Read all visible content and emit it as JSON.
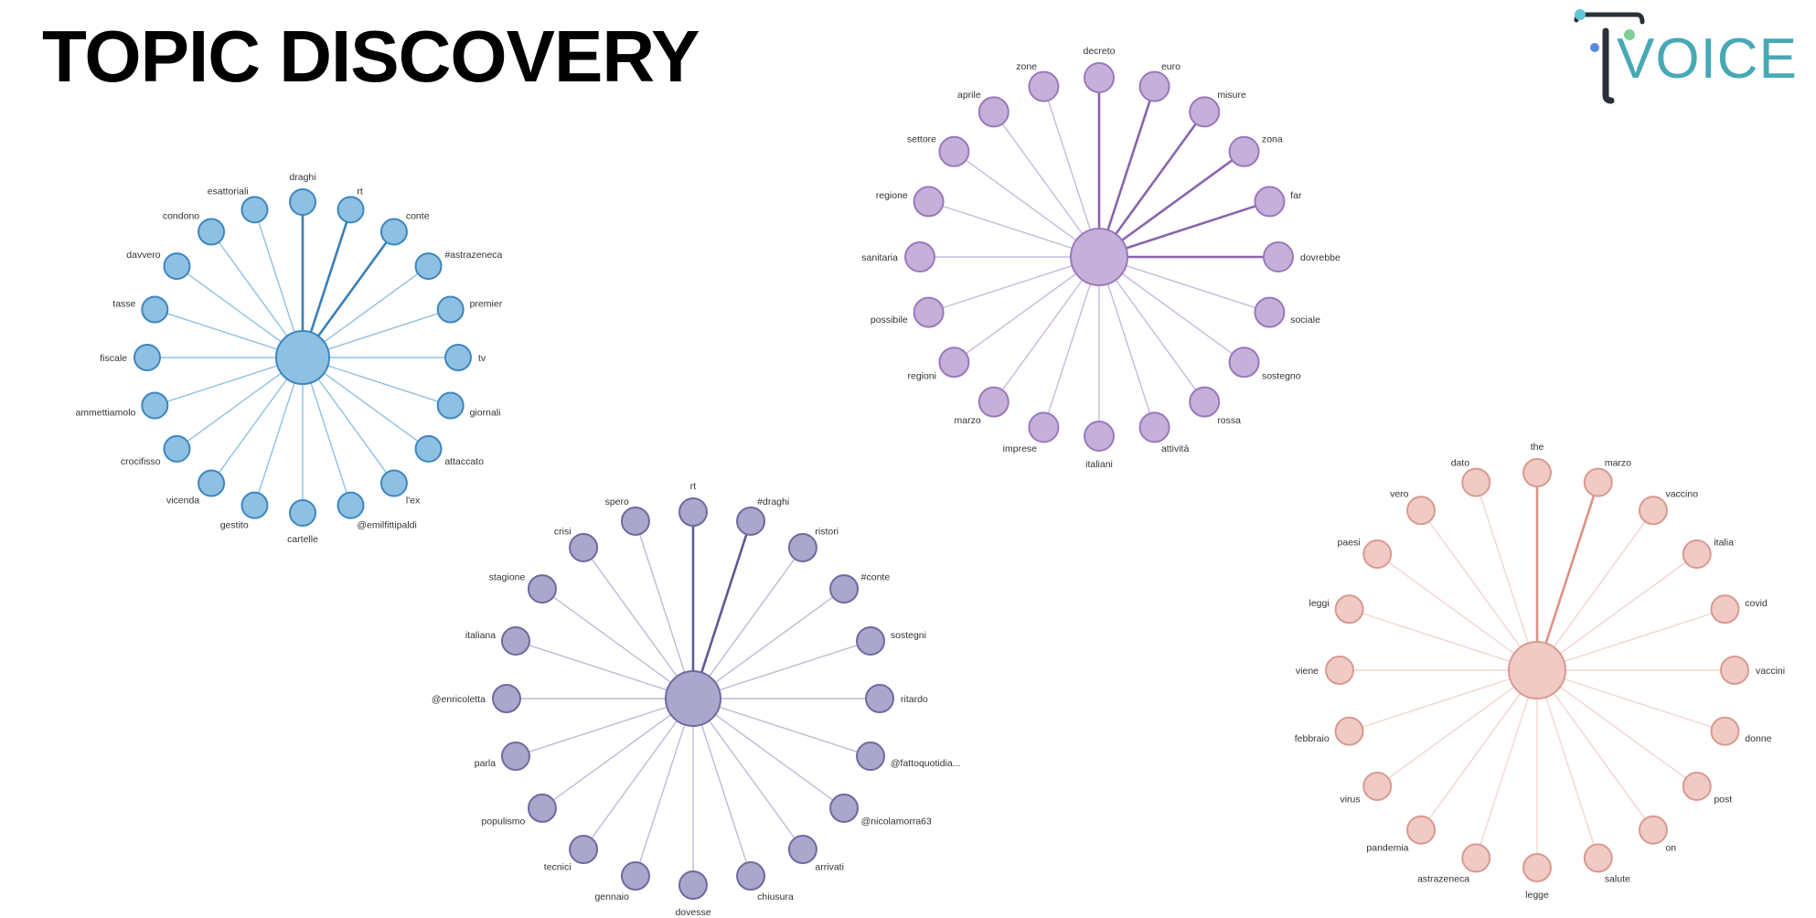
{
  "title": "TOPIC DISCOVERY",
  "logo": {
    "text": "VOICE",
    "icon": "voice-logo-icon",
    "colors": {
      "dark": "#2b2f3a",
      "teal": "#48a8b6",
      "cyan": "#5ec7d6",
      "green": "#7fcf9a",
      "blue": "#5b8ad8"
    }
  },
  "topics": [
    {
      "id": "topic-blue",
      "color": "#8ec0e2",
      "stroke": "#3d86bf",
      "edge": "#8ec0e2",
      "edge_strong": "#3a7fb7",
      "nodes": [
        {
          "label": "draghi",
          "strong": true
        },
        {
          "label": "rt",
          "strong": true
        },
        {
          "label": "conte",
          "strong": true
        },
        {
          "label": "#astrazeneca"
        },
        {
          "label": "premier"
        },
        {
          "label": "tv"
        },
        {
          "label": "giornali"
        },
        {
          "label": "attaccato"
        },
        {
          "label": "l'ex"
        },
        {
          "label": "@emilfittipaldi"
        },
        {
          "label": "cartelle"
        },
        {
          "label": "gestito"
        },
        {
          "label": "vicenda"
        },
        {
          "label": "crocifisso"
        },
        {
          "label": "ammettiamolo"
        },
        {
          "label": "fiscale"
        },
        {
          "label": "tasse"
        },
        {
          "label": "davvero"
        },
        {
          "label": "condono"
        },
        {
          "label": "esattoriali"
        }
      ]
    },
    {
      "id": "topic-lilac",
      "color": "#c6b0da",
      "stroke": "#9a78bd",
      "edge": "#c9b8dc",
      "edge_strong": "#8a64ad",
      "nodes": [
        {
          "label": "decreto",
          "strong": true
        },
        {
          "label": "euro",
          "strong": true
        },
        {
          "label": "misure",
          "strong": true
        },
        {
          "label": "zona",
          "strong": true
        },
        {
          "label": "far",
          "strong": true
        },
        {
          "label": "dovrebbe",
          "strong": true
        },
        {
          "label": "sociale"
        },
        {
          "label": "sostegno"
        },
        {
          "label": "rossa"
        },
        {
          "label": "attività"
        },
        {
          "label": "italiani"
        },
        {
          "label": "imprese"
        },
        {
          "label": "marzo"
        },
        {
          "label": "regioni"
        },
        {
          "label": "possibile"
        },
        {
          "label": "sanitaria"
        },
        {
          "label": "regione"
        },
        {
          "label": "settore"
        },
        {
          "label": "aprile"
        },
        {
          "label": "zone"
        }
      ]
    },
    {
      "id": "topic-purple",
      "color": "#aaa6cc",
      "stroke": "#6e6aa0",
      "edge": "#bdbad8",
      "edge_strong": "#5e5a92",
      "nodes": [
        {
          "label": "rt",
          "strong": true
        },
        {
          "label": "#draghi",
          "strong": true
        },
        {
          "label": "ristori"
        },
        {
          "label": "#conte"
        },
        {
          "label": "sostegni"
        },
        {
          "label": "ritardo"
        },
        {
          "label": "@fattoquotidia..."
        },
        {
          "label": "@nicolamorra63"
        },
        {
          "label": "arrivati"
        },
        {
          "label": "chiusura"
        },
        {
          "label": "dovesse"
        },
        {
          "label": "gennaio"
        },
        {
          "label": "tecnici"
        },
        {
          "label": "populismo"
        },
        {
          "label": "parla"
        },
        {
          "label": "@enricoletta"
        },
        {
          "label": "italiana"
        },
        {
          "label": "stagione"
        },
        {
          "label": "crisi"
        },
        {
          "label": "spero"
        }
      ]
    },
    {
      "id": "topic-pink",
      "color": "#f0cac4",
      "stroke": "#d99a90",
      "edge": "#f2d4cf",
      "edge_strong": "#e08f85",
      "nodes": [
        {
          "label": "the",
          "strong": true
        },
        {
          "label": "marzo",
          "strong": true
        },
        {
          "label": "vaccino"
        },
        {
          "label": "italia"
        },
        {
          "label": "covid"
        },
        {
          "label": "vaccini"
        },
        {
          "label": "donne"
        },
        {
          "label": "post"
        },
        {
          "label": "on"
        },
        {
          "label": "salute"
        },
        {
          "label": "legge"
        },
        {
          "label": "astrazeneca"
        },
        {
          "label": "pandemia"
        },
        {
          "label": "virus"
        },
        {
          "label": "febbraio"
        },
        {
          "label": "viene"
        },
        {
          "label": "leggi"
        },
        {
          "label": "paesi"
        },
        {
          "label": "vero"
        },
        {
          "label": "dato"
        }
      ]
    }
  ]
}
